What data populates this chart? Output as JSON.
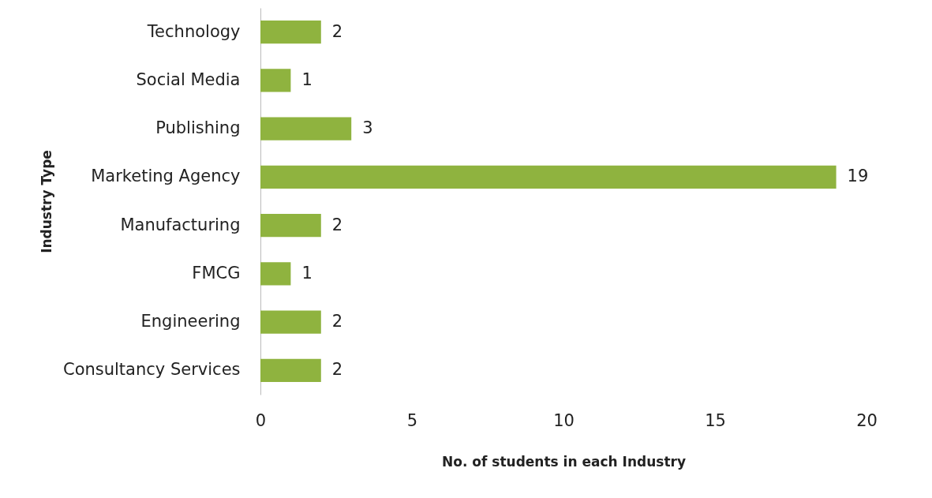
{
  "chart_data": {
    "type": "bar",
    "orientation": "horizontal",
    "categories": [
      "Technology",
      "Social Media",
      "Publishing",
      "Marketing Agency",
      "Manufacturing",
      "FMCG",
      "Engineering",
      "Consultancy Services"
    ],
    "values": [
      2,
      1,
      3,
      19,
      2,
      1,
      2,
      2
    ],
    "color": "#8fb33f",
    "xlim": [
      0,
      20
    ],
    "xticks": [
      0,
      5,
      10,
      15,
      20
    ],
    "xlabel": "No. of students in each Industry",
    "ylabel": "Industry Type",
    "data_labels": true,
    "grid": false
  }
}
